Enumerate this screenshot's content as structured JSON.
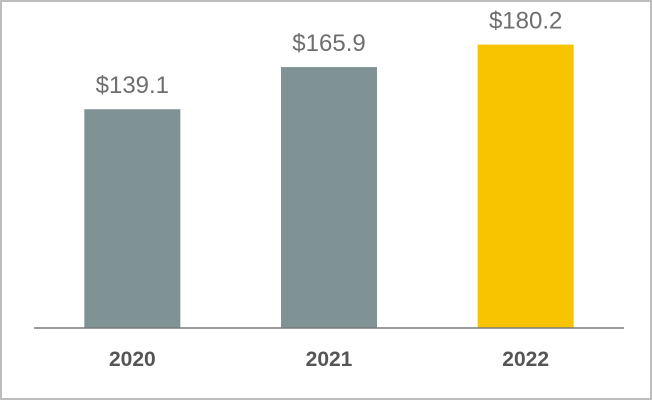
{
  "chart_data": {
    "type": "bar",
    "title": "",
    "xlabel": "",
    "ylabel": "",
    "categories": [
      "2020",
      "2021",
      "2022"
    ],
    "values": [
      139.1,
      165.9,
      180.2
    ],
    "value_labels": [
      "$139.1",
      "$165.9",
      "$180.2"
    ],
    "ylim": [
      0,
      260
    ],
    "grid": false,
    "legend": "none",
    "colors": [
      "#7f9294",
      "#7f9294",
      "#f8c400"
    ],
    "axis_color": "#7a7a7a"
  }
}
